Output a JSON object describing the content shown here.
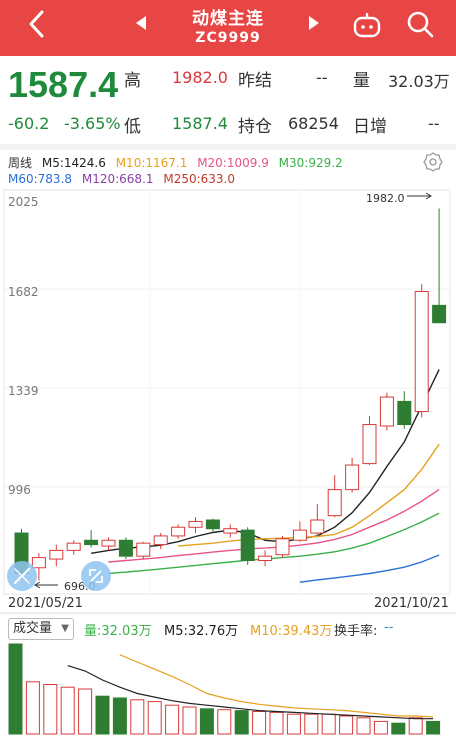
{
  "header": {
    "title": "动煤主连",
    "code": "ZC9999",
    "icons": [
      "back-arrow-icon",
      "prev-arrow-icon",
      "next-arrow-icon",
      "robot-icon",
      "search-icon"
    ]
  },
  "quote": {
    "price": "1587.4",
    "change": "-60.2",
    "change_pct": "-3.65%",
    "high_label": "高",
    "high": "1982.0",
    "low_label": "低",
    "low": "1587.4",
    "prev_settle_label": "昨结",
    "prev_settle": "--",
    "volume_label": "量",
    "volume": "32.03万",
    "oi_label": "持仓",
    "oi": "68254",
    "daily_inc_label": "日增",
    "daily_inc": "--"
  },
  "ma": {
    "period": "周线",
    "m5": "M5:1424.6",
    "m10": "M10:1167.1",
    "m20": "M20:1009.9",
    "m30": "M30:929.2",
    "m60": "M60:783.8",
    "m120": "M120:668.1",
    "m250": "M250:633.0",
    "colors": {
      "m5": "#222222",
      "m10": "#e6a11f",
      "m20": "#e8538a",
      "m30": "#3ab14a",
      "m60": "#2a6fd6",
      "m120": "#8b3fa8",
      "m250": "#c0392b"
    }
  },
  "chart_data": {
    "type": "candlestick",
    "y_ticks": [
      "2025",
      "1682",
      "1339",
      "996"
    ],
    "max_label": "1982.0",
    "min_label": "696.0",
    "start_date": "2021/05/21",
    "end_date": "2021/10/21",
    "up_color": "#d83a3a",
    "down_color": "#2e7d32",
    "candles": [
      {
        "o": 860,
        "h": 875,
        "l": 700,
        "c": 720
      },
      {
        "o": 740,
        "h": 790,
        "l": 696,
        "c": 775
      },
      {
        "o": 770,
        "h": 820,
        "l": 745,
        "c": 800
      },
      {
        "o": 800,
        "h": 835,
        "l": 785,
        "c": 825
      },
      {
        "o": 835,
        "h": 870,
        "l": 810,
        "c": 820
      },
      {
        "o": 815,
        "h": 845,
        "l": 800,
        "c": 835
      },
      {
        "o": 835,
        "h": 845,
        "l": 770,
        "c": 780
      },
      {
        "o": 780,
        "h": 830,
        "l": 770,
        "c": 825
      },
      {
        "o": 820,
        "h": 860,
        "l": 805,
        "c": 850
      },
      {
        "o": 850,
        "h": 890,
        "l": 840,
        "c": 880
      },
      {
        "o": 880,
        "h": 915,
        "l": 860,
        "c": 900
      },
      {
        "o": 905,
        "h": 910,
        "l": 865,
        "c": 875
      },
      {
        "o": 860,
        "h": 890,
        "l": 845,
        "c": 875
      },
      {
        "o": 870,
        "h": 880,
        "l": 750,
        "c": 765
      },
      {
        "o": 765,
        "h": 800,
        "l": 745,
        "c": 780
      },
      {
        "o": 785,
        "h": 850,
        "l": 775,
        "c": 840
      },
      {
        "o": 835,
        "h": 900,
        "l": 830,
        "c": 870
      },
      {
        "o": 860,
        "h": 960,
        "l": 850,
        "c": 905
      },
      {
        "o": 920,
        "h": 1060,
        "l": 915,
        "c": 1010
      },
      {
        "o": 1010,
        "h": 1120,
        "l": 1000,
        "c": 1095
      },
      {
        "o": 1100,
        "h": 1265,
        "l": 1095,
        "c": 1235
      },
      {
        "o": 1230,
        "h": 1345,
        "l": 1215,
        "c": 1330
      },
      {
        "o": 1315,
        "h": 1350,
        "l": 1220,
        "c": 1235
      },
      {
        "o": 1280,
        "h": 1720,
        "l": 1260,
        "c": 1695
      },
      {
        "o": 1647,
        "h": 1982,
        "l": 1587,
        "c": 1587
      }
    ],
    "ma_series": {
      "m5": [
        null,
        null,
        null,
        null,
        790,
        800,
        808,
        812,
        818,
        830,
        848,
        862,
        870,
        860,
        835,
        830,
        840,
        850,
        880,
        930,
        1000,
        1090,
        1175,
        1300,
        1425
      ],
      "m10": [
        null,
        null,
        null,
        null,
        null,
        null,
        null,
        null,
        null,
        815,
        820,
        825,
        832,
        838,
        840,
        842,
        845,
        848,
        855,
        880,
        920,
        965,
        1010,
        1080,
        1167
      ],
      "m20": [
        null,
        null,
        null,
        null,
        null,
        760,
        765,
        770,
        775,
        782,
        788,
        794,
        800,
        805,
        808,
        812,
        818,
        826,
        838,
        855,
        880,
        905,
        935,
        970,
        1010
      ],
      "m30": [
        null,
        null,
        null,
        null,
        null,
        720,
        725,
        730,
        736,
        742,
        748,
        754,
        760,
        766,
        770,
        775,
        780,
        787,
        795,
        808,
        825,
        848,
        872,
        898,
        929
      ],
      "m60": [
        null,
        null,
        null,
        null,
        null,
        null,
        null,
        null,
        null,
        null,
        null,
        null,
        null,
        null,
        null,
        null,
        690,
        698,
        705,
        712,
        720,
        730,
        742,
        760,
        784
      ]
    }
  },
  "volume": {
    "tab_label": "成交量",
    "vol": "量:32.03万",
    "m5": "M5:32.76万",
    "m10": "M10:39.43万",
    "turnover_label": "换手率:",
    "turnover": "--",
    "vol_values": [
      100,
      58,
      55,
      52,
      50,
      42,
      40,
      38,
      36,
      32,
      30,
      28,
      27,
      26,
      25,
      24,
      22,
      22,
      22,
      20,
      18,
      14,
      12,
      18,
      14
    ],
    "vol_colors": [
      "down",
      "up",
      "up",
      "up",
      "up",
      "down",
      "down",
      "up",
      "up",
      "up",
      "up",
      "down",
      "up",
      "down",
      "up",
      "up",
      "up",
      "up",
      "up",
      "up",
      "up",
      "up",
      "down",
      "up",
      "down"
    ],
    "m5_values": [
      null,
      null,
      null,
      76,
      70,
      60,
      52,
      45,
      41,
      37,
      34,
      32,
      30,
      28,
      26,
      25,
      24,
      23,
      22,
      21,
      20,
      19,
      18,
      17,
      17
    ],
    "m10_values": [
      null,
      null,
      null,
      null,
      null,
      null,
      88,
      80,
      72,
      64,
      55,
      45,
      40,
      36,
      33,
      31,
      29,
      28,
      27,
      26,
      24,
      22,
      20,
      20,
      19
    ]
  }
}
